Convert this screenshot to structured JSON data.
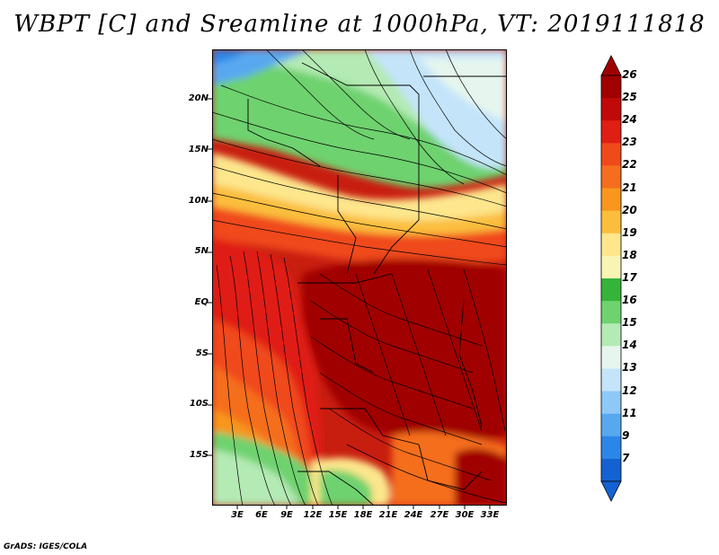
{
  "title": "WBPT [C] and Sreamline at 1000hPa, VT: 2019111818",
  "credit": "GrADS: IGES/COLA",
  "y_axis_labels": [
    "20N",
    "15N",
    "10N",
    "5N",
    "EQ",
    "5S",
    "10S",
    "15S"
  ],
  "x_axis_labels": [
    "3E",
    "6E",
    "9E",
    "12E",
    "15E",
    "18E",
    "21E",
    "24E",
    "27E",
    "30E",
    "33E"
  ],
  "colorbar": {
    "labels": [
      "26",
      "25",
      "24",
      "23",
      "22",
      "21",
      "20",
      "19",
      "18",
      "17",
      "16",
      "15",
      "14",
      "13",
      "12",
      "11",
      "9",
      "7"
    ],
    "colors": [
      "#a00000",
      "#c00a0a",
      "#e01e14",
      "#f04a1a",
      "#f56e1e",
      "#f8961e",
      "#fbbe3c",
      "#fde68c",
      "#f8f4b4",
      "#36b43a",
      "#6ed26e",
      "#b4eab4",
      "#e6f6ee",
      "#c4e4fa",
      "#8ec8f6",
      "#58a8f0",
      "#2c86e6",
      "#1462d2"
    ]
  },
  "map": {
    "base_color": "#c81e10"
  }
}
